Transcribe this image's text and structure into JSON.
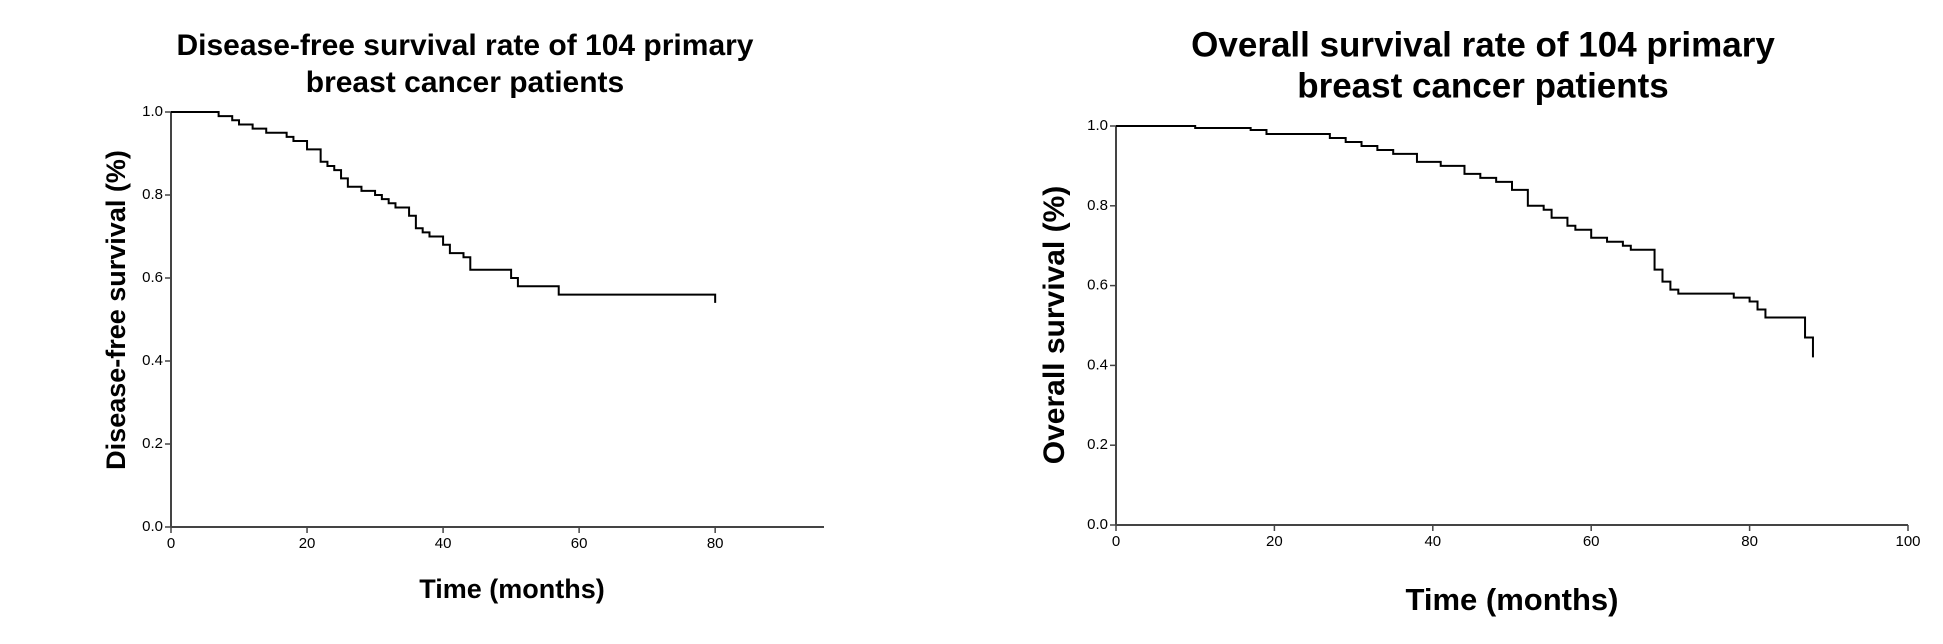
{
  "chart_data": [
    {
      "type": "line",
      "step": "post",
      "title": [
        "Disease-free survival rate of 104 primary",
        "breast cancer patients"
      ],
      "x_label": "Time (months)",
      "y_label": "Disease-free survival (%)",
      "x": [
        0,
        7,
        9,
        10,
        12,
        14,
        17,
        18,
        20,
        22,
        23,
        24,
        25,
        26,
        28,
        30,
        31,
        32,
        33,
        35,
        36,
        37,
        38,
        40,
        41,
        43,
        44,
        50,
        51,
        57,
        80
      ],
      "values": [
        1.0,
        0.99,
        0.98,
        0.97,
        0.96,
        0.95,
        0.94,
        0.93,
        0.91,
        0.88,
        0.87,
        0.86,
        0.84,
        0.82,
        0.81,
        0.8,
        0.79,
        0.78,
        0.77,
        0.75,
        0.72,
        0.71,
        0.7,
        0.68,
        0.66,
        0.65,
        0.62,
        0.6,
        0.58,
        0.56,
        0.54
      ],
      "color": "#000000",
      "xlim": [
        0,
        96
      ],
      "xticks": [
        0,
        20,
        40,
        60,
        80
      ],
      "ylim": [
        0,
        1
      ],
      "yticks": [
        {
          "value": 0,
          "label": "0.0"
        },
        0.2,
        0.4,
        0.6,
        0.8,
        {
          "value": 1,
          "label": "1.0"
        }
      ]
    },
    {
      "type": "line",
      "step": "post",
      "title": [
        "Overall survival rate of 104 primary",
        "breast cancer patients"
      ],
      "x_label": "Time (months)",
      "y_label": "Overall survival (%)",
      "x": [
        0,
        10,
        17,
        19,
        27,
        29,
        31,
        33,
        35,
        38,
        41,
        44,
        46,
        48,
        50,
        52,
        54,
        55,
        57,
        58,
        60,
        62,
        64,
        65,
        68,
        69,
        70,
        71,
        78,
        80,
        81,
        82,
        87,
        88
      ],
      "values": [
        1.0,
        0.995,
        0.99,
        0.98,
        0.97,
        0.96,
        0.95,
        0.94,
        0.93,
        0.91,
        0.9,
        0.88,
        0.87,
        0.86,
        0.84,
        0.8,
        0.79,
        0.77,
        0.75,
        0.74,
        0.72,
        0.71,
        0.7,
        0.69,
        0.64,
        0.61,
        0.59,
        0.58,
        0.57,
        0.56,
        0.54,
        0.52,
        0.47,
        0.42
      ],
      "color": "#000000",
      "xlim": [
        0,
        100
      ],
      "xticks": [
        0,
        20,
        40,
        60,
        80,
        100
      ],
      "ylim": [
        0,
        1
      ],
      "yticks": [
        {
          "value": 0,
          "label": "0.0"
        },
        0.2,
        0.4,
        0.6,
        0.8,
        {
          "value": 1,
          "label": "1.0"
        }
      ]
    }
  ]
}
